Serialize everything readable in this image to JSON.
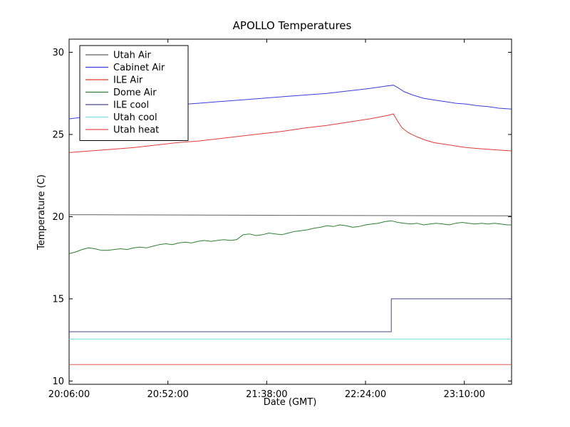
{
  "figure": {
    "background_color": "#ffffff",
    "axes_color": "#000000"
  },
  "chart_data": {
    "type": "line",
    "title": "APOLLO Temperatures",
    "xlabel": "Date (GMT)",
    "ylabel": "Temperature (C)",
    "x_unit": "minutes since 20:06:00 GMT",
    "xlim": [
      0,
      206
    ],
    "ylim": [
      9.8,
      30.8
    ],
    "xticks": [
      {
        "t": 0,
        "label": "20:06:00"
      },
      {
        "t": 46,
        "label": "20:52:00"
      },
      {
        "t": 92,
        "label": "21:38:00"
      },
      {
        "t": 138,
        "label": "22:24:00"
      },
      {
        "t": 184,
        "label": "23:10:00"
      }
    ],
    "yticks": [
      10,
      15,
      20,
      25,
      30
    ],
    "grid": false,
    "legend": {
      "position": "upper-left",
      "border_color": "#000000",
      "background": "#ffffff"
    },
    "series": [
      {
        "name": "Utah Air",
        "color": "#606060",
        "points": [
          [
            0,
            20.12
          ],
          [
            100,
            20.08
          ],
          [
            206,
            20.05
          ]
        ]
      },
      {
        "name": "Cabinet Air",
        "color": "#3c3cdc",
        "points": [
          [
            0,
            25.95
          ],
          [
            10,
            26.1
          ],
          [
            20,
            26.25
          ],
          [
            30,
            26.4
          ],
          [
            40,
            26.55
          ],
          [
            50,
            26.7
          ],
          [
            55,
            26.85
          ],
          [
            60,
            26.9
          ],
          [
            70,
            27.0
          ],
          [
            80,
            27.1
          ],
          [
            90,
            27.2
          ],
          [
            100,
            27.3
          ],
          [
            110,
            27.4
          ],
          [
            120,
            27.5
          ],
          [
            130,
            27.65
          ],
          [
            140,
            27.8
          ],
          [
            148,
            27.95
          ],
          [
            151,
            28.0
          ],
          [
            153,
            27.85
          ],
          [
            156,
            27.6
          ],
          [
            160,
            27.4
          ],
          [
            165,
            27.2
          ],
          [
            170,
            27.1
          ],
          [
            175,
            27.0
          ],
          [
            180,
            26.9
          ],
          [
            185,
            26.85
          ],
          [
            190,
            26.75
          ],
          [
            195,
            26.7
          ],
          [
            200,
            26.6
          ],
          [
            206,
            26.55
          ]
        ]
      },
      {
        "name": "ILE Air",
        "color": "#e03a3a",
        "points": [
          [
            0,
            23.9
          ],
          [
            10,
            24.0
          ],
          [
            20,
            24.1
          ],
          [
            30,
            24.2
          ],
          [
            40,
            24.35
          ],
          [
            50,
            24.5
          ],
          [
            60,
            24.6
          ],
          [
            70,
            24.75
          ],
          [
            80,
            24.9
          ],
          [
            90,
            25.05
          ],
          [
            100,
            25.2
          ],
          [
            110,
            25.4
          ],
          [
            120,
            25.55
          ],
          [
            130,
            25.75
          ],
          [
            140,
            25.95
          ],
          [
            148,
            26.15
          ],
          [
            151,
            26.25
          ],
          [
            153,
            25.8
          ],
          [
            155,
            25.4
          ],
          [
            158,
            25.1
          ],
          [
            162,
            24.85
          ],
          [
            166,
            24.65
          ],
          [
            170,
            24.5
          ],
          [
            175,
            24.4
          ],
          [
            180,
            24.3
          ],
          [
            185,
            24.2
          ],
          [
            190,
            24.15
          ],
          [
            195,
            24.1
          ],
          [
            200,
            24.05
          ],
          [
            206,
            24.0
          ]
        ]
      },
      {
        "name": "Dome Air",
        "color": "#2e7d32",
        "points": [
          [
            0,
            17.75
          ],
          [
            3,
            17.85
          ],
          [
            6,
            18.0
          ],
          [
            9,
            18.1
          ],
          [
            12,
            18.05
          ],
          [
            15,
            17.95
          ],
          [
            18,
            17.95
          ],
          [
            21,
            18.0
          ],
          [
            24,
            18.05
          ],
          [
            27,
            18.0
          ],
          [
            30,
            18.1
          ],
          [
            33,
            18.15
          ],
          [
            36,
            18.1
          ],
          [
            39,
            18.2
          ],
          [
            42,
            18.3
          ],
          [
            45,
            18.35
          ],
          [
            48,
            18.3
          ],
          [
            51,
            18.4
          ],
          [
            54,
            18.45
          ],
          [
            57,
            18.4
          ],
          [
            60,
            18.5
          ],
          [
            63,
            18.55
          ],
          [
            66,
            18.5
          ],
          [
            69,
            18.55
          ],
          [
            72,
            18.6
          ],
          [
            75,
            18.55
          ],
          [
            78,
            18.6
          ],
          [
            81,
            18.9
          ],
          [
            84,
            18.95
          ],
          [
            87,
            18.85
          ],
          [
            90,
            18.9
          ],
          [
            93,
            19.0
          ],
          [
            96,
            18.95
          ],
          [
            99,
            18.9
          ],
          [
            102,
            19.0
          ],
          [
            105,
            19.1
          ],
          [
            108,
            19.15
          ],
          [
            111,
            19.2
          ],
          [
            114,
            19.3
          ],
          [
            117,
            19.35
          ],
          [
            120,
            19.45
          ],
          [
            123,
            19.4
          ],
          [
            126,
            19.5
          ],
          [
            129,
            19.45
          ],
          [
            132,
            19.35
          ],
          [
            135,
            19.4
          ],
          [
            138,
            19.5
          ],
          [
            141,
            19.55
          ],
          [
            144,
            19.6
          ],
          [
            147,
            19.7
          ],
          [
            150,
            19.75
          ],
          [
            153,
            19.65
          ],
          [
            156,
            19.6
          ],
          [
            159,
            19.55
          ],
          [
            162,
            19.6
          ],
          [
            165,
            19.5
          ],
          [
            168,
            19.55
          ],
          [
            171,
            19.6
          ],
          [
            174,
            19.55
          ],
          [
            177,
            19.5
          ],
          [
            180,
            19.6
          ],
          [
            183,
            19.65
          ],
          [
            186,
            19.6
          ],
          [
            189,
            19.55
          ],
          [
            192,
            19.6
          ],
          [
            195,
            19.55
          ],
          [
            198,
            19.6
          ],
          [
            201,
            19.55
          ],
          [
            204,
            19.5
          ],
          [
            206,
            19.5
          ]
        ]
      },
      {
        "name": "ILE cool",
        "color": "#46468c",
        "points": [
          [
            0,
            13.0
          ],
          [
            150,
            13.0
          ],
          [
            150,
            15.0
          ],
          [
            206,
            15.0
          ]
        ]
      },
      {
        "name": "Utah cool",
        "color": "#7fdde6",
        "points": [
          [
            0,
            12.55
          ],
          [
            206,
            12.55
          ]
        ]
      },
      {
        "name": "Utah heat",
        "color": "#e35050",
        "points": [
          [
            0,
            11.0
          ],
          [
            206,
            11.0
          ]
        ]
      }
    ]
  }
}
